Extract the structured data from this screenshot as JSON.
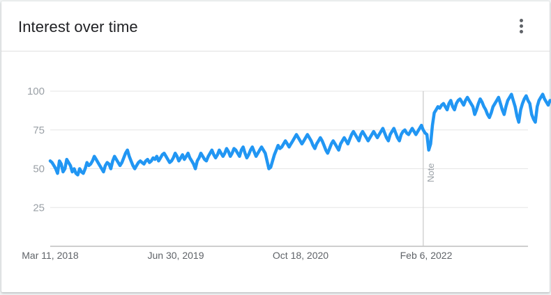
{
  "header": {
    "title": "Interest over time",
    "menu_icon": "more-vert-icon"
  },
  "chart_data": {
    "type": "line",
    "title": "Interest over time",
    "xlabel": "",
    "ylabel": "",
    "ylim": [
      0,
      100
    ],
    "yticks": [
      25,
      50,
      75,
      100
    ],
    "x_tick_labels": [
      "Mar 11, 2018",
      "Jun 30, 2019",
      "Oct 18, 2020",
      "Feb 6, 2022"
    ],
    "x_range": [
      "2018-03-11",
      "2023-03-05"
    ],
    "grid": true,
    "line_color": "#2196f3",
    "annotation": {
      "label": "Note",
      "x": "2022-01-30"
    },
    "series": [
      {
        "name": "",
        "x_start": "2018-03-11",
        "x_step_weeks": 1,
        "values": [
          55,
          54,
          52,
          50,
          47,
          55,
          53,
          48,
          50,
          56,
          54,
          52,
          48,
          50,
          47,
          46,
          50,
          48,
          47,
          50,
          54,
          52,
          53,
          55,
          58,
          56,
          54,
          52,
          50,
          48,
          52,
          54,
          53,
          50,
          55,
          58,
          56,
          54,
          52,
          54,
          57,
          60,
          62,
          58,
          55,
          52,
          50,
          52,
          54,
          55,
          54,
          53,
          55,
          56,
          54,
          55,
          57,
          56,
          58,
          55,
          57,
          59,
          60,
          58,
          56,
          54,
          55,
          57,
          60,
          58,
          55,
          57,
          59,
          56,
          58,
          60,
          57,
          55,
          53,
          50,
          55,
          57,
          60,
          58,
          56,
          55,
          58,
          60,
          62,
          59,
          57,
          59,
          62,
          60,
          58,
          60,
          63,
          61,
          58,
          60,
          63,
          62,
          60,
          58,
          62,
          64,
          60,
          57,
          59,
          62,
          64,
          61,
          58,
          60,
          62,
          64,
          62,
          60,
          55,
          50,
          51,
          55,
          59,
          62,
          65,
          63,
          64,
          66,
          68,
          66,
          64,
          66,
          68,
          70,
          72,
          70,
          68,
          66,
          68,
          70,
          72,
          70,
          68,
          65,
          63,
          66,
          68,
          70,
          68,
          65,
          62,
          60,
          63,
          66,
          68,
          66,
          64,
          62,
          66,
          68,
          70,
          68,
          66,
          69,
          72,
          74,
          72,
          70,
          68,
          72,
          74,
          72,
          70,
          68,
          70,
          72,
          74,
          72,
          70,
          72,
          74,
          76,
          73,
          70,
          68,
          72,
          74,
          76,
          73,
          70,
          68,
          72,
          74,
          75,
          73,
          72,
          74,
          76,
          74,
          72,
          74,
          76,
          78,
          75,
          73,
          72,
          62,
          66,
          78,
          86,
          88,
          90,
          89,
          91,
          92,
          90,
          88,
          92,
          94,
          90,
          88,
          92,
          94,
          95,
          93,
          91,
          94,
          96,
          94,
          92,
          90,
          85,
          88,
          92,
          95,
          93,
          90,
          88,
          85,
          83,
          86,
          90,
          92,
          94,
          96,
          92,
          88,
          85,
          90,
          94,
          96,
          98,
          94,
          90,
          84,
          80,
          88,
          92,
          95,
          97,
          94,
          92,
          85,
          82,
          80,
          90,
          94,
          96,
          98,
          95,
          93,
          91,
          94
        ]
      }
    ]
  }
}
